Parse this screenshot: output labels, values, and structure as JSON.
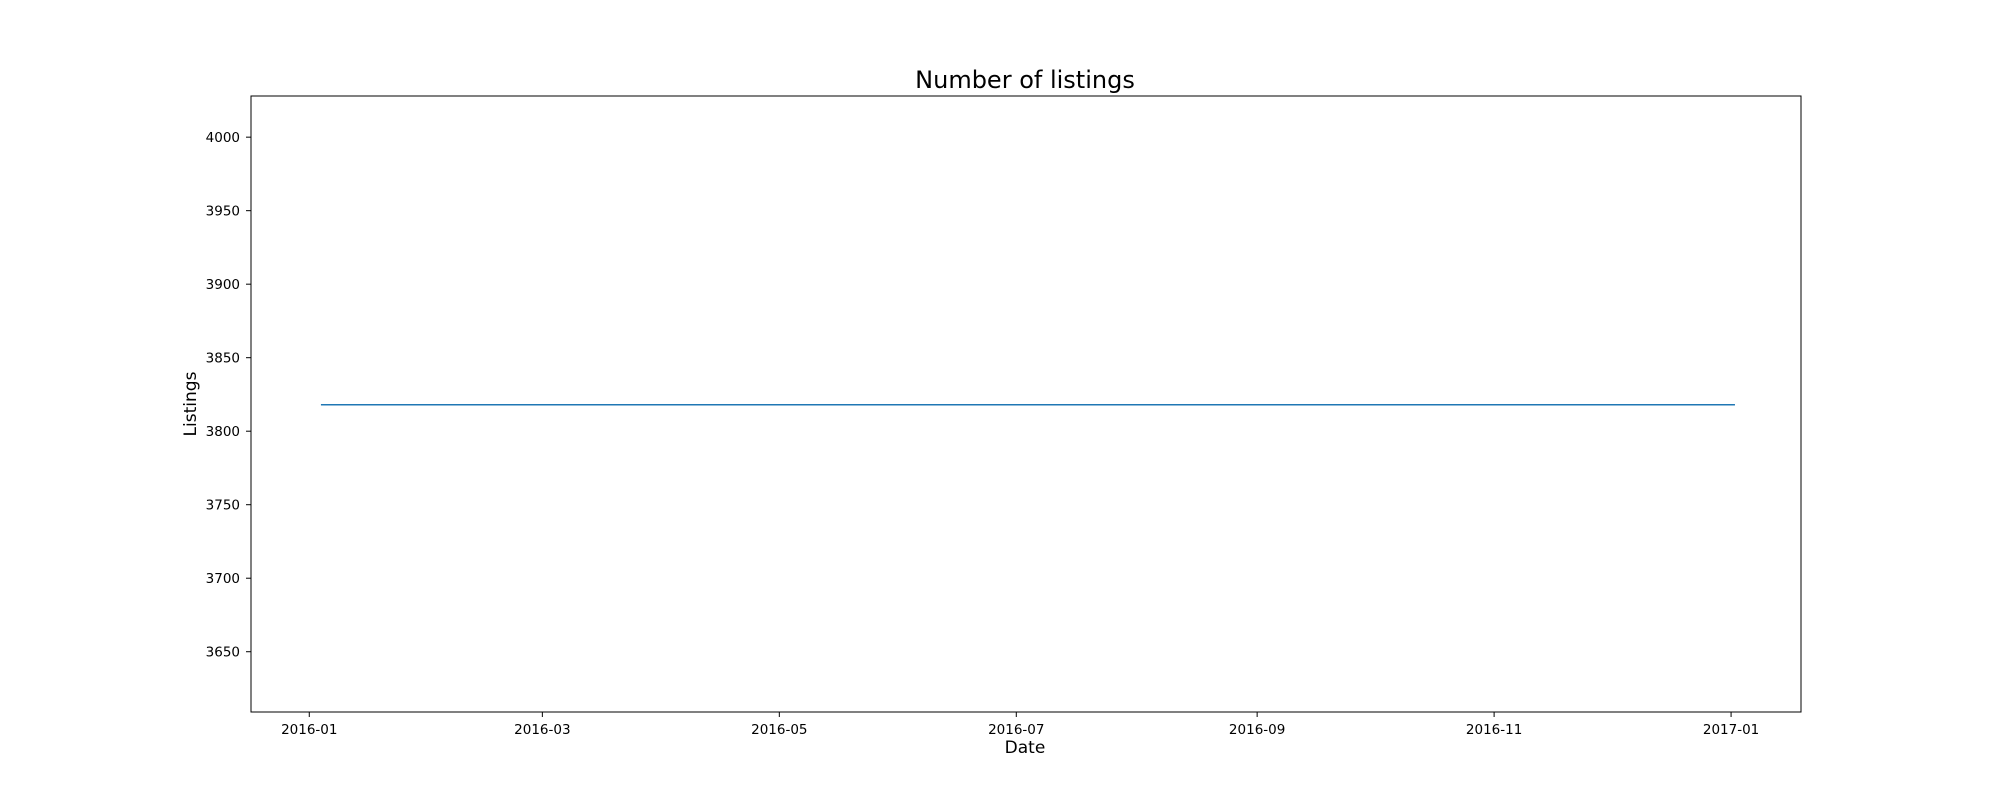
{
  "chart_data": {
    "type": "line",
    "title": "Number of listings",
    "xlabel": "Date",
    "ylabel": "Listings",
    "x_tick_labels": [
      "2016-01",
      "2016-03",
      "2016-05",
      "2016-07",
      "2016-09",
      "2016-11",
      "2017-01"
    ],
    "y_tick_labels": [
      "3650",
      "3700",
      "3750",
      "3800",
      "3850",
      "3900",
      "3950",
      "4000"
    ],
    "ylim": [
      3609,
      4028
    ],
    "xlim": [
      "2015-12-17",
      "2017-01-19"
    ],
    "grid": false,
    "series": [
      {
        "x": [
          "2016-01-04",
          "2017-01-02"
        ],
        "values": [
          3818,
          3818
        ]
      }
    ],
    "colors": {
      "line": "#1f77b4",
      "axes": "#000000"
    }
  }
}
